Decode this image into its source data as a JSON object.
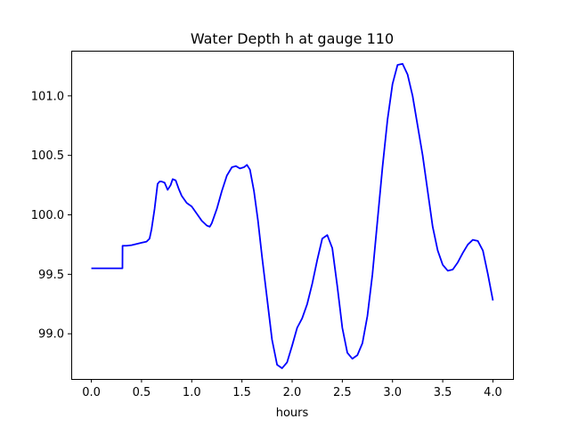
{
  "chart_data": {
    "type": "line",
    "title": "Water Depth h at gauge 110",
    "xlabel": "hours",
    "ylabel": "",
    "xlim": [
      -0.2,
      4.2
    ],
    "ylim": [
      98.62,
      101.38
    ],
    "xticks": [
      0.0,
      0.5,
      1.0,
      1.5,
      2.0,
      2.5,
      3.0,
      3.5,
      4.0
    ],
    "xtick_labels": [
      "0.0",
      "0.5",
      "1.0",
      "1.5",
      "2.0",
      "2.5",
      "3.0",
      "3.5",
      "4.0"
    ],
    "yticks": [
      99.0,
      99.5,
      100.0,
      100.5,
      101.0
    ],
    "ytick_labels": [
      "99.0",
      "99.5",
      "100.0",
      "100.5",
      "101.0"
    ],
    "grid": false,
    "series": [
      {
        "color": "#0000ff",
        "x": [
          0.0,
          0.1,
          0.2,
          0.31,
          0.311,
          0.35,
          0.4,
          0.45,
          0.5,
          0.55,
          0.58,
          0.6,
          0.63,
          0.66,
          0.68,
          0.7,
          0.73,
          0.76,
          0.79,
          0.81,
          0.84,
          0.87,
          0.9,
          0.95,
          1.0,
          1.05,
          1.1,
          1.15,
          1.18,
          1.2,
          1.25,
          1.3,
          1.35,
          1.4,
          1.44,
          1.48,
          1.52,
          1.55,
          1.58,
          1.62,
          1.66,
          1.7,
          1.75,
          1.8,
          1.85,
          1.9,
          1.95,
          2.0,
          2.05,
          2.1,
          2.15,
          2.2,
          2.25,
          2.3,
          2.35,
          2.4,
          2.45,
          2.5,
          2.55,
          2.6,
          2.65,
          2.7,
          2.75,
          2.8,
          2.85,
          2.9,
          2.95,
          3.0,
          3.05,
          3.1,
          3.15,
          3.2,
          3.3,
          3.4,
          3.45,
          3.5,
          3.55,
          3.6,
          3.65,
          3.7,
          3.75,
          3.8,
          3.85,
          3.9,
          3.95,
          4.0
        ],
        "y": [
          99.55,
          99.55,
          99.55,
          99.55,
          99.74,
          99.74,
          99.745,
          99.755,
          99.765,
          99.775,
          99.8,
          99.88,
          100.05,
          100.26,
          100.28,
          100.28,
          100.27,
          100.21,
          100.25,
          100.3,
          100.29,
          100.22,
          100.16,
          100.1,
          100.07,
          100.01,
          99.95,
          99.91,
          99.9,
          99.93,
          100.05,
          100.2,
          100.33,
          100.4,
          100.41,
          100.39,
          100.4,
          100.42,
          100.38,
          100.2,
          99.95,
          99.65,
          99.3,
          98.95,
          98.74,
          98.71,
          98.76,
          98.9,
          99.05,
          99.13,
          99.25,
          99.42,
          99.62,
          99.8,
          99.83,
          99.72,
          99.4,
          99.05,
          98.84,
          98.79,
          98.82,
          98.92,
          99.15,
          99.5,
          99.95,
          100.4,
          100.8,
          101.1,
          101.26,
          101.27,
          101.18,
          101.0,
          100.5,
          99.9,
          99.7,
          99.58,
          99.53,
          99.54,
          99.6,
          99.68,
          99.75,
          99.79,
          99.78,
          99.7,
          99.5,
          99.28
        ]
      }
    ]
  }
}
